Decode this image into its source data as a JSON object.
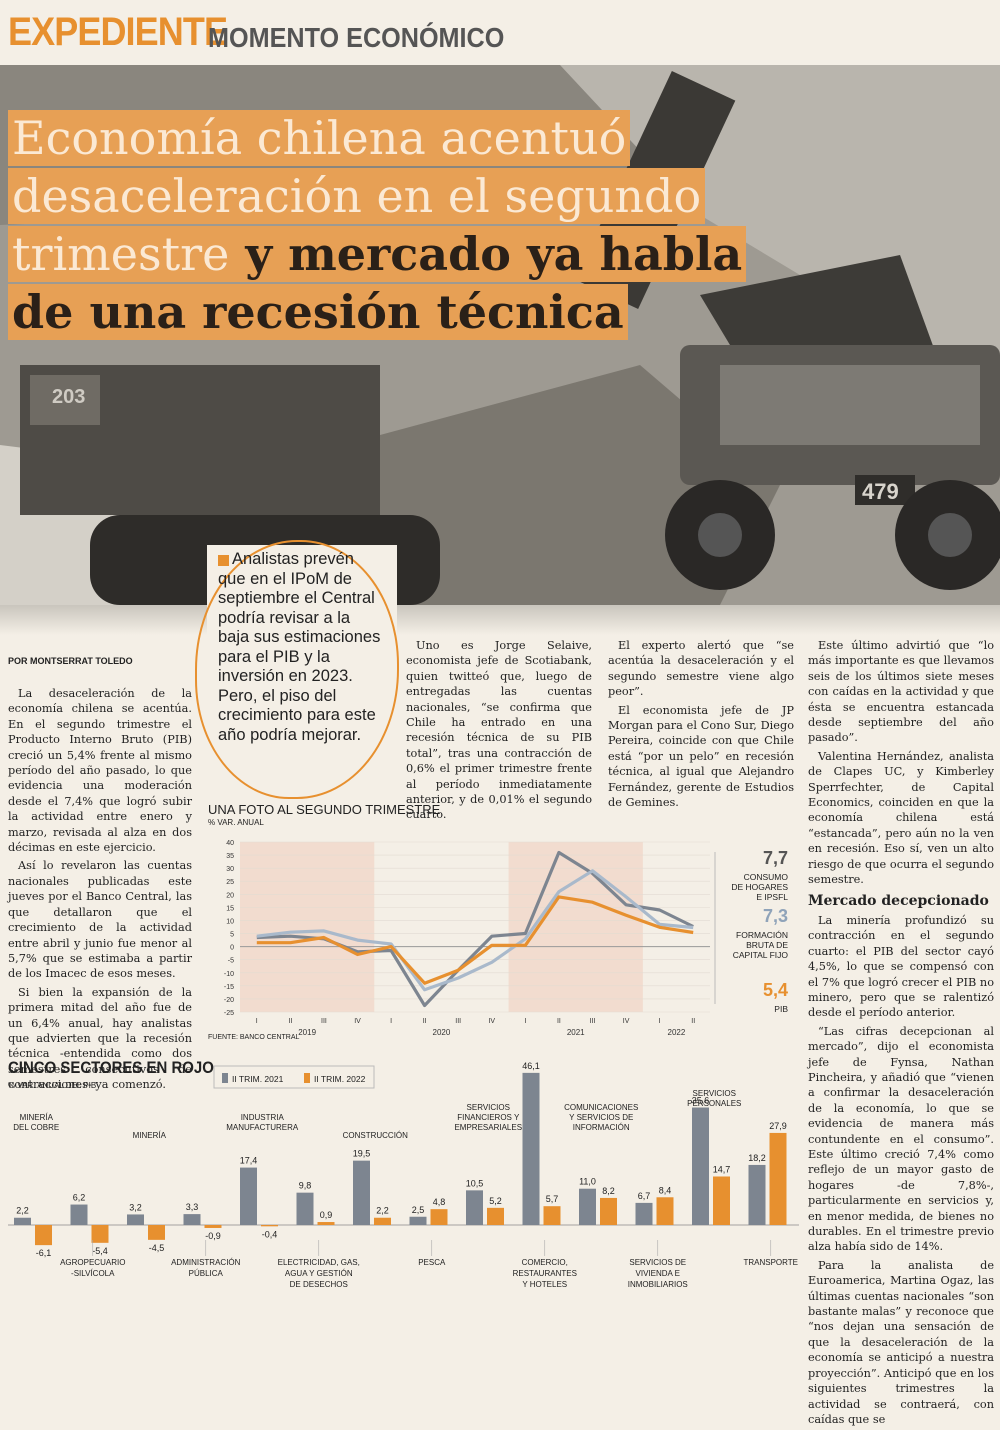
{
  "header": {
    "section": "EXPEDIENTE",
    "subsection": "MOMENTO ECONÓMICO"
  },
  "photo": {
    "truck_numbers": [
      "203",
      "479"
    ]
  },
  "headline": {
    "line1": "Economía chilena acentuó",
    "line2": "desaceleración en el segundo",
    "line3_light": "trimestre",
    "line3_dark": " y mercado ya habla",
    "line4": "de una recesión técnica"
  },
  "callout": "Analistas prevén que en el IPoM de septiembre el Central podría revisar a la baja sus estimaciones para el PIB y la inversión en 2023. Pero, el piso del crecimiento para este año podría mejorar.",
  "byline": "POR MONTSERRAT TOLEDO",
  "columns": {
    "col1": [
      "La desaceleración de la economía chilena se acentúa. En el segundo trimestre el Producto Interno Bruto (PIB) creció un 5,4% frente al mismo período del año pasado, lo que evidencia una moderación desde el 7,4% que logró subir la actividad entre enero y marzo, revisada al alza en dos décimas en este ejercicio.",
      "Así lo revelaron las cuentas nacionales publicadas este jueves por el Banco Central, las que detallaron que el crecimiento de la actividad entre abril y junio fue menor al 5,7% que se estimaba a partir de los Imacec de esos meses.",
      "Si bien la expansión de la primera mitad del año fue de un 6,4% anual, hay analistas que advierten que la recesión técnica -entendida como dos semestres consecutivos de contracciones- ya comenzó."
    ],
    "col3": [
      "Uno es Jorge Selaive, economista jefe de Scotiabank, quien twitteó que, luego de entregadas las cuentas nacionales, “se confirma que Chile ha entrado en una recesión técnica de su PIB total”, tras una contracción de 0,6% el primer trimestre frente al período inmediatamente anterior, y de 0,01% el segundo cuarto."
    ],
    "col4": [
      "El experto alertó que “se acentúa la desaceleración y el segundo semestre viene algo peor”.",
      "El economista jefe de JP Morgan para el Cono Sur, Diego Pereira, coincide con que Chile está “por un pelo” en recesión técnica, al igual que Alejandro Fernández, gerente de Estudios de Gemines."
    ],
    "col5": [
      "Este último advirtió que “lo más importante es que llevamos seis de los últimos siete meses con caídas en la actividad y que ésta se encuentra estancada desde septiembre del año pasado”.",
      "Valentina Hernández, analista de Clapes UC, y Kimberley Sperrfechter, de Capital Economics, coinciden en que la economía chilena está “estancada”, pero aún no la ven en recesión. Eso sí, ven un alto riesgo de que ocurra el segundo semestre."
    ],
    "col5_subhead": "Mercado decepcionado",
    "col5b": [
      "La minería profundizó su contracción en el segundo cuarto: el PIB del sector cayó 4,5%, lo que se compensó con el 7% que logró crecer el PIB no minero, pero que se ralentizó desde el período anterior.",
      "“Las cifras decepcionan al mercado”, dijo el economista jefe de Fynsa, Nathan Pincheira, y añadió que “vienen a confirmar la desaceleración de la economía, lo que se evidencia de manera más contundente en el consumo”. Este último creció 7,4% como reflejo de un mayor gasto de hogares -de 7,8%-, particularmente en servicios y, en menor medida, de bienes no durables. En el trimestre previo alza había sido de 14%.",
      "Para la analista de Euroamerica, Martina Ogaz, las últimas cuentas nacionales “son bastante malas” y reconoce que “nos dejan una sensación de que la desaceleración de la economía se anticipó a nuestra proyección”. Anticipó que en los siguientes trimestres la actividad se contraerá, con caídas que se"
    ]
  },
  "chart1_title": "UNA FOTO AL SEGUNDO TRIMESTRE",
  "chart1_unit": "% VAR. ANUAL",
  "chart1_source": "FUENTE: BANCO CENTRAL",
  "chart2_title": "CINCO SECTORES EN ROJO",
  "chart2_unit": "% VAR. ANUAL DEL PIB",
  "colors": {
    "orange": "#e7902f",
    "dark_gray": "#7d8590",
    "light_blue": "#a9b9cb",
    "shade": "#f2dccf"
  },
  "chart_data": [
    {
      "type": "line",
      "title": "UNA FOTO AL SEGUNDO TRIMESTRE",
      "ylabel": "% VAR. ANUAL",
      "ylim": [
        -25,
        40
      ],
      "yticks": [
        40,
        35,
        30,
        25,
        20,
        15,
        10,
        5,
        0,
        -5,
        -10,
        -15,
        -20,
        -25
      ],
      "x_quarters": [
        "I",
        "II",
        "III",
        "IV",
        "I",
        "II",
        "III",
        "IV",
        "I",
        "II",
        "III",
        "IV",
        "I",
        "II"
      ],
      "x_years": [
        "2019",
        "2020",
        "2021",
        "2022"
      ],
      "shaded_years": [
        "2019",
        "2021"
      ],
      "series": [
        {
          "name": "CONSUMO DE HOGARES E IPSFL",
          "last_label": "7,7",
          "color": "#7d8590",
          "values": [
            3.5,
            4.0,
            3.0,
            -2.0,
            -1.5,
            -22.5,
            -9.0,
            4.0,
            5.0,
            36.0,
            28.0,
            16.0,
            14.0,
            7.7
          ]
        },
        {
          "name": "FORMACIÓN BRUTA DE CAPITAL FIJO",
          "last_label": "7,3",
          "color": "#a9b9cb",
          "values": [
            4.0,
            5.5,
            6.0,
            2.5,
            1.0,
            -16.5,
            -12.0,
            -6.0,
            3.0,
            21.0,
            29.0,
            19.0,
            8.5,
            7.3
          ]
        },
        {
          "name": "PIB",
          "last_label": "5,4",
          "color": "#e7902f",
          "values": [
            1.5,
            1.5,
            3.5,
            -3.0,
            0.0,
            -14.0,
            -9.0,
            0.5,
            0.5,
            19.0,
            17.0,
            12.0,
            7.4,
            5.4
          ]
        }
      ]
    },
    {
      "type": "bar",
      "title": "CINCO SECTORES EN ROJO",
      "ylabel": "% VAR. ANUAL DEL PIB",
      "legend": [
        "II TRIM. 2021",
        "II TRIM. 2022"
      ],
      "legend_position": "top",
      "categories": [
        "MINERÍA DEL COBRE",
        "AGROPECUARIO -SILVÍCOLA",
        "MINERÍA",
        "ADMINISTRACIÓN PÚBLICA",
        "INDUSTRIA MANUFACTURERA",
        "ELECTRICIDAD, GAS, AGUA Y GESTIÓN DE DESECHOS",
        "CONSTRUCCIÓN",
        "PESCA",
        "SERVICIOS FINANCIEROS Y EMPRESARIALES",
        "COMERCIO, RESTAURANTES Y HOTELES",
        "COMUNICACIONES Y SERVICIOS DE INFORMACIÓN",
        "SERVICIOS DE VIVIENDA E INMOBILIARIOS",
        "SERVICIOS PERSONALES",
        "TRANSPORTE"
      ],
      "label_rows": [
        "top",
        "bottom",
        "top",
        "bottom",
        "top",
        "bottom",
        "top",
        "bottom",
        "top",
        "bottom",
        "top",
        "bottom",
        "top",
        "bottom"
      ],
      "label_lines": [
        [
          "MINERÍA",
          "DEL COBRE"
        ],
        [
          "AGROPECUARIO",
          "-SILVÍCOLA"
        ],
        [
          "MINERÍA"
        ],
        [
          "ADMINISTRACIÓN",
          "PÚBLICA"
        ],
        [
          "INDUSTRIA",
          "MANUFACTURERA"
        ],
        [
          "ELECTRICIDAD, GAS,",
          "AGUA Y GESTIÓN",
          "DE DESECHOS"
        ],
        [
          "CONSTRUCCIÓN"
        ],
        [
          "PESCA"
        ],
        [
          "SERVICIOS",
          "FINANCIEROS Y",
          "EMPRESARIALES"
        ],
        [
          "COMERCIO,",
          "RESTAURANTES",
          "Y HOTELES"
        ],
        [
          "COMUNICACIONES",
          "Y SERVICIOS DE",
          "INFORMACIÓN"
        ],
        [
          "SERVICIOS DE",
          "VIVIENDA E",
          "INMOBILIARIOS"
        ],
        [
          "SERVICIOS",
          "PERSONALES"
        ],
        [
          "TRANSPORTE"
        ]
      ],
      "series": [
        {
          "name": "II TRIM. 2021",
          "color": "#7d8590",
          "values": [
            2.2,
            6.2,
            3.2,
            3.3,
            17.4,
            9.8,
            19.5,
            2.5,
            10.5,
            46.1,
            11.0,
            6.7,
            35.6,
            18.2
          ],
          "labels": [
            "2,2",
            "6,2",
            "3,2",
            "3,3",
            "17,4",
            "9,8",
            "19,5",
            "2,5",
            "10,5",
            "46,1",
            "11,0",
            "6,7",
            "35,6",
            "18,2"
          ]
        },
        {
          "name": "II TRIM. 2022",
          "color": "#e7902f",
          "values": [
            -6.1,
            -5.4,
            -4.5,
            -0.9,
            -0.4,
            0.9,
            2.2,
            4.8,
            5.2,
            5.7,
            8.2,
            8.4,
            14.7,
            27.9
          ],
          "labels": [
            "-6,1",
            "-5,4",
            "-4,5",
            "-0,9",
            "-0,4",
            "0,9",
            "2,2",
            "4,8",
            "5,2",
            "5,7",
            "8,2",
            "8,4",
            "14,7",
            "27,9"
          ]
        }
      ]
    }
  ]
}
